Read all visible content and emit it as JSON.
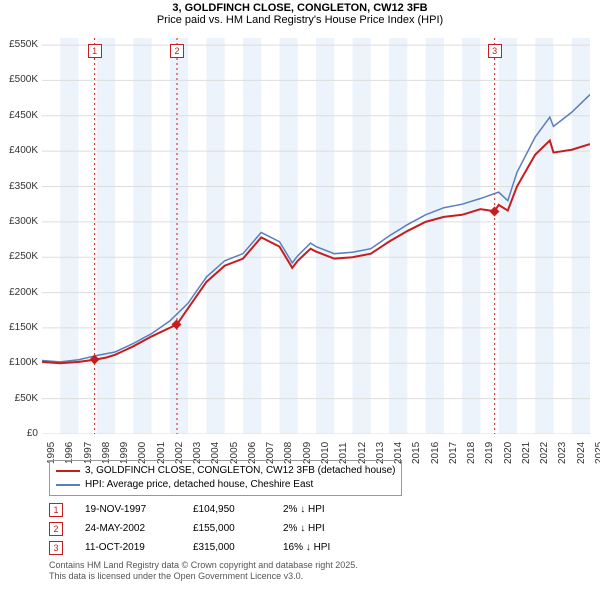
{
  "title": "3, GOLDFINCH CLOSE, CONGLETON, CW12 3FB",
  "subtitle": "Price paid vs. HM Land Registry's House Price Index (HPI)",
  "chart": {
    "type": "line",
    "x_years": [
      1995,
      1996,
      1997,
      1998,
      1999,
      2000,
      2001,
      2002,
      2003,
      2004,
      2005,
      2006,
      2007,
      2008,
      2009,
      2010,
      2011,
      2012,
      2013,
      2014,
      2015,
      2016,
      2017,
      2018,
      2019,
      2020,
      2021,
      2022,
      2023,
      2024,
      2025
    ],
    "ylim": [
      0,
      560
    ],
    "ytick_step": 50,
    "ytick_labels": [
      "£0",
      "£50K",
      "£100K",
      "£150K",
      "£200K",
      "£250K",
      "£300K",
      "£350K",
      "£400K",
      "£450K",
      "£500K",
      "£550K"
    ],
    "background_color": "#ffffff",
    "grid_color": "#dddddd",
    "band_color": "#edf3fb",
    "series": {
      "property": {
        "label": "3, GOLDFINCH CLOSE, CONGLETON, CW12 3FB (detached house)",
        "color": "#c41e1e",
        "line_width": 2,
        "data": [
          [
            1995,
            102
          ],
          [
            1996,
            100
          ],
          [
            1997,
            102
          ],
          [
            1997.88,
            104.95
          ],
          [
            1998.5,
            108
          ],
          [
            1999,
            112
          ],
          [
            2000,
            124
          ],
          [
            2001,
            138
          ],
          [
            2002.39,
            155
          ],
          [
            2003,
            178
          ],
          [
            2004,
            215
          ],
          [
            2005,
            238
          ],
          [
            2006,
            248
          ],
          [
            2007,
            278
          ],
          [
            2008,
            265
          ],
          [
            2008.7,
            235
          ],
          [
            2009,
            245
          ],
          [
            2009.7,
            262
          ],
          [
            2010,
            258
          ],
          [
            2011,
            248
          ],
          [
            2012,
            250
          ],
          [
            2013,
            255
          ],
          [
            2014,
            272
          ],
          [
            2015,
            287
          ],
          [
            2016,
            300
          ],
          [
            2017,
            307
          ],
          [
            2018,
            310
          ],
          [
            2019,
            318
          ],
          [
            2019.78,
            315
          ],
          [
            2020,
            324
          ],
          [
            2020.5,
            316
          ],
          [
            2021,
            350
          ],
          [
            2022,
            395
          ],
          [
            2022.8,
            415
          ],
          [
            2023,
            398
          ],
          [
            2024,
            402
          ],
          [
            2025,
            410
          ]
        ]
      },
      "hpi": {
        "label": "HPI: Average price, detached house, Cheshire East",
        "color": "#5b7ebd",
        "line_width": 1.5,
        "data": [
          [
            1995,
            104
          ],
          [
            1996,
            102
          ],
          [
            1997,
            105
          ],
          [
            1998,
            111
          ],
          [
            1999,
            116
          ],
          [
            2000,
            128
          ],
          [
            2001,
            142
          ],
          [
            2002,
            160
          ],
          [
            2003,
            185
          ],
          [
            2004,
            222
          ],
          [
            2005,
            245
          ],
          [
            2006,
            255
          ],
          [
            2007,
            285
          ],
          [
            2008,
            272
          ],
          [
            2008.7,
            242
          ],
          [
            2009,
            252
          ],
          [
            2009.7,
            270
          ],
          [
            2010,
            265
          ],
          [
            2011,
            255
          ],
          [
            2012,
            257
          ],
          [
            2013,
            262
          ],
          [
            2014,
            280
          ],
          [
            2015,
            296
          ],
          [
            2016,
            310
          ],
          [
            2017,
            320
          ],
          [
            2018,
            325
          ],
          [
            2019,
            333
          ],
          [
            2020,
            342
          ],
          [
            2020.5,
            330
          ],
          [
            2021,
            370
          ],
          [
            2022,
            420
          ],
          [
            2022.8,
            448
          ],
          [
            2023,
            435
          ],
          [
            2024,
            455
          ],
          [
            2025,
            480
          ]
        ]
      }
    },
    "sale_events": [
      {
        "num": "1",
        "year": 1997.88,
        "price": 104.95,
        "color": "#c41e1e"
      },
      {
        "num": "2",
        "year": 2002.39,
        "price": 155,
        "color": "#c41e1e"
      },
      {
        "num": "3",
        "year": 2019.78,
        "price": 315,
        "color": "#c41e1e"
      }
    ],
    "event_line_color": "#c41e1e"
  },
  "legend": {
    "rows": [
      {
        "color": "#c41e1e",
        "width": 2.5,
        "label": "3, GOLDFINCH CLOSE, CONGLETON, CW12 3FB (detached house)"
      },
      {
        "color": "#5b7ebd",
        "width": 1.5,
        "label": "HPI: Average price, detached house, Cheshire East"
      }
    ]
  },
  "sales": [
    {
      "num": "1",
      "date": "19-NOV-1997",
      "price": "£104,950",
      "change": "2% ↓ HPI",
      "color": "#c41e1e"
    },
    {
      "num": "2",
      "date": "24-MAY-2002",
      "price": "£155,000",
      "change": "2% ↓ HPI",
      "color": "#c41e1e"
    },
    {
      "num": "3",
      "date": "11-OCT-2019",
      "price": "£315,000",
      "change": "16% ↓ HPI",
      "color": "#c41e1e"
    }
  ],
  "attribution": {
    "line1": "Contains HM Land Registry data © Crown copyright and database right 2025.",
    "line2": "This data is licensed under the Open Government Licence v3.0."
  }
}
